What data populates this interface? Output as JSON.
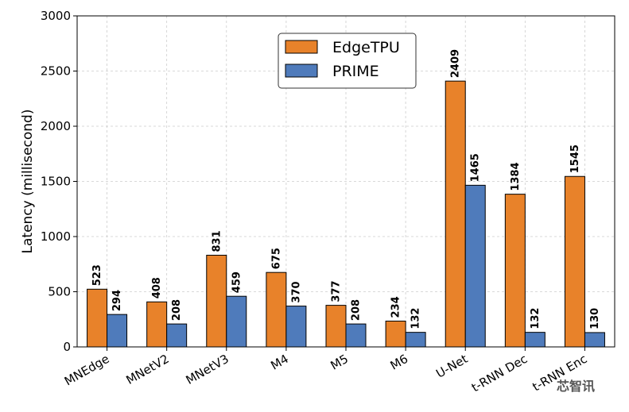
{
  "chart_data": {
    "type": "bar",
    "categories": [
      "MNEdge",
      "MNetV2",
      "MNetV3",
      "M4",
      "M5",
      "M6",
      "U-Net",
      "t-RNN Dec",
      "t-RNN Enc"
    ],
    "series": [
      {
        "name": "EdgeTPU",
        "color": "#e8822a",
        "values": [
          523,
          408,
          831,
          675,
          377,
          234,
          2409,
          1384,
          1545
        ]
      },
      {
        "name": "PRIME",
        "color": "#4f7bbb",
        "values": [
          294,
          208,
          459,
          370,
          208,
          132,
          1465,
          132,
          130
        ]
      }
    ],
    "ylabel": "Latency (millisecond)",
    "xlabel": "",
    "ylim": [
      0,
      3000
    ],
    "yticks": [
      0,
      500,
      1000,
      1500,
      2000,
      2500,
      3000
    ],
    "grid": true,
    "legend_position": "top-center"
  },
  "watermark": "芯智讯"
}
